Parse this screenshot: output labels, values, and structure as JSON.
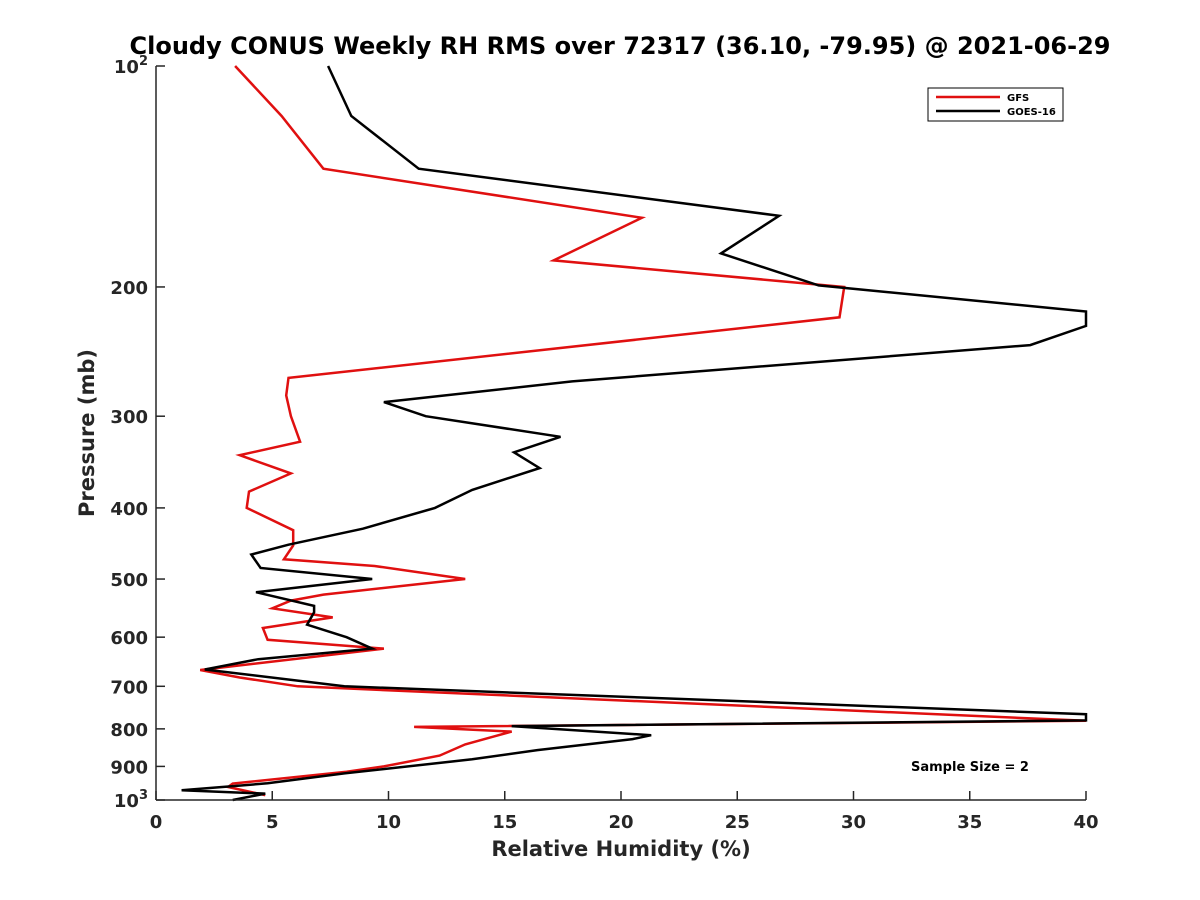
{
  "chart_data": {
    "type": "line",
    "title": "Cloudy CONUS Weekly RH RMS over 72317 (36.10, -79.95) @ 2021-06-29",
    "xlabel": "Relative Humidity (%)",
    "ylabel": "Pressure (mb)",
    "xlim": [
      0,
      40
    ],
    "ylim": [
      100,
      1000
    ],
    "y_scale": "log",
    "y_reversed": true,
    "grid": false,
    "legend_position": "top-right",
    "annotation": "Sample Size = 2",
    "x_ticks": [
      0,
      5,
      10,
      15,
      20,
      25,
      30,
      35,
      40
    ],
    "x_tick_labels": [
      "0",
      "5",
      "10",
      "15",
      "20",
      "25",
      "30",
      "35",
      "40"
    ],
    "y_ticks": [
      100,
      200,
      300,
      400,
      500,
      600,
      700,
      800,
      900,
      1000
    ],
    "y_tick_labels": [
      {
        "base": "10",
        "exp": "2"
      },
      {
        "text": "200"
      },
      {
        "text": "300"
      },
      {
        "text": "400"
      },
      {
        "text": "500"
      },
      {
        "text": "600"
      },
      {
        "text": "700"
      },
      {
        "text": "800"
      },
      {
        "text": "900"
      },
      {
        "base": "10",
        "exp": "3"
      }
    ],
    "series": [
      {
        "name": "GFS",
        "color": "#e01010",
        "points": [
          [
            3.4,
            100
          ],
          [
            5.4,
            117
          ],
          [
            7.2,
            138
          ],
          [
            20.9,
            161
          ],
          [
            17.1,
            184
          ],
          [
            29.6,
            200
          ],
          [
            29.4,
            220
          ],
          [
            5.7,
            266
          ],
          [
            5.6,
            281
          ],
          [
            5.8,
            300
          ],
          [
            6.2,
            325
          ],
          [
            3.6,
            339
          ],
          [
            5.8,
            359
          ],
          [
            4.0,
            380
          ],
          [
            3.9,
            400
          ],
          [
            5.9,
            429
          ],
          [
            5.9,
            450
          ],
          [
            5.5,
            470
          ],
          [
            9.4,
            480
          ],
          [
            13.3,
            500
          ],
          [
            7.2,
            525
          ],
          [
            5.8,
            535
          ],
          [
            5.0,
            548
          ],
          [
            7.6,
            564
          ],
          [
            4.6,
            583
          ],
          [
            4.8,
            605
          ],
          [
            9.8,
            622
          ],
          [
            1.9,
            665
          ],
          [
            3.6,
            681
          ],
          [
            6.1,
            700
          ],
          [
            40,
            780
          ],
          [
            11.1,
            795
          ],
          [
            15.3,
            807
          ],
          [
            14.5,
            820
          ],
          [
            13.3,
            840
          ],
          [
            12.2,
            870
          ],
          [
            9.8,
            900
          ],
          [
            8.2,
            915
          ],
          [
            3.3,
            950
          ],
          [
            3.1,
            960
          ],
          [
            4.7,
            985
          ]
        ]
      },
      {
        "name": "GOES-16",
        "color": "#000000",
        "points": [
          [
            7.4,
            100
          ],
          [
            8.4,
            117
          ],
          [
            11.3,
            138
          ],
          [
            26.8,
            160
          ],
          [
            24.3,
            180
          ],
          [
            28.5,
            199
          ],
          [
            40,
            216
          ],
          [
            40,
            226
          ],
          [
            37.6,
            240
          ],
          [
            17.9,
            269
          ],
          [
            9.8,
            287
          ],
          [
            11.6,
            300
          ],
          [
            17.4,
            320
          ],
          [
            15.4,
            336
          ],
          [
            16.5,
            353
          ],
          [
            13.6,
            378
          ],
          [
            12.0,
            400
          ],
          [
            8.9,
            427
          ],
          [
            5.7,
            449
          ],
          [
            4.1,
            463
          ],
          [
            4.5,
            483
          ],
          [
            9.3,
            500
          ],
          [
            4.3,
            521
          ],
          [
            6.8,
            544
          ],
          [
            6.8,
            555
          ],
          [
            6.5,
            577
          ],
          [
            8.2,
            600
          ],
          [
            9.3,
            622
          ],
          [
            4.4,
            643
          ],
          [
            2.1,
            664
          ],
          [
            8.1,
            700
          ],
          [
            40,
            764
          ],
          [
            40,
            779
          ],
          [
            15.3,
            793
          ],
          [
            21.3,
            816
          ],
          [
            20.5,
            826
          ],
          [
            16.4,
            855
          ],
          [
            13.6,
            880
          ],
          [
            8.1,
            920
          ],
          [
            4.8,
            949
          ],
          [
            1.1,
            970
          ],
          [
            4.7,
            980
          ],
          [
            3.3,
            1000
          ]
        ]
      }
    ]
  }
}
